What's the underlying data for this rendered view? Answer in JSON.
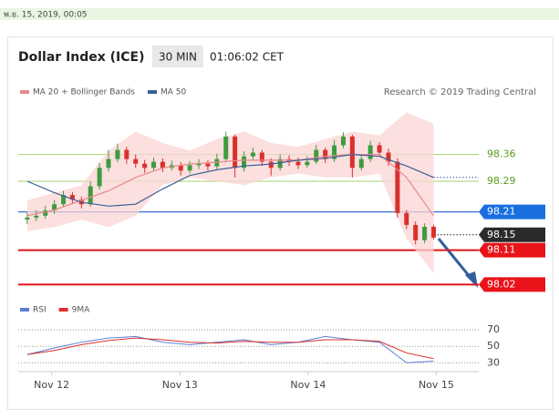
{
  "header": {
    "date": "พ.ย. 15, 2019, 00:05",
    "title": "Dollar Index (ICE)",
    "timeframe": "30 MIN",
    "time": "01:06:02 CET",
    "credit": "Research © 2019 Trading Central"
  },
  "chart_data": [
    {
      "type": "candlestick",
      "up_color": "#3f9b3f",
      "down_color": "#d9302c",
      "xlim": [
        -1,
        50
      ],
      "ylim": [
        97.99,
        98.49
      ],
      "x": [
        0,
        1,
        2,
        3,
        4,
        5,
        6,
        7,
        8,
        9,
        10,
        11,
        12,
        13,
        14,
        15,
        16,
        17,
        18,
        19,
        20,
        21,
        22,
        23,
        24,
        25,
        26,
        27,
        28,
        29,
        30,
        31,
        32,
        33,
        34,
        35,
        36,
        37,
        38,
        39,
        40,
        41,
        42,
        43,
        44,
        45
      ],
      "open": [
        98.19,
        98.195,
        98.2,
        98.214,
        98.23,
        98.254,
        98.242,
        98.23,
        98.277,
        98.325,
        98.348,
        98.372,
        98.348,
        98.336,
        98.325,
        98.341,
        98.325,
        98.332,
        98.318,
        98.332,
        98.336,
        98.329,
        98.348,
        98.407,
        98.325,
        98.355,
        98.365,
        98.341,
        98.325,
        98.348,
        98.341,
        98.332,
        98.341,
        98.372,
        98.348,
        98.384,
        98.407,
        98.325,
        98.348,
        98.384,
        98.365,
        98.341,
        98.207,
        98.176,
        98.136,
        98.171
      ],
      "high": [
        98.207,
        98.214,
        98.226,
        98.241,
        98.265,
        98.262,
        98.25,
        98.29,
        98.338,
        98.372,
        98.388,
        98.38,
        98.36,
        98.346,
        98.352,
        98.35,
        98.344,
        98.34,
        98.343,
        98.348,
        98.345,
        98.362,
        98.42,
        98.412,
        98.368,
        98.378,
        98.372,
        98.35,
        98.36,
        98.358,
        98.352,
        98.355,
        98.385,
        98.378,
        98.398,
        98.418,
        98.412,
        98.36,
        98.396,
        98.392,
        98.375,
        98.35,
        98.215,
        98.185,
        98.18,
        98.176
      ],
      "low": [
        98.178,
        98.186,
        98.192,
        98.205,
        98.222,
        98.231,
        98.219,
        98.224,
        98.268,
        98.315,
        98.34,
        98.336,
        98.325,
        98.312,
        98.316,
        98.314,
        98.318,
        98.305,
        98.31,
        98.322,
        98.318,
        98.322,
        98.34,
        98.3,
        98.315,
        98.345,
        98.33,
        98.305,
        98.318,
        98.33,
        98.322,
        98.325,
        98.335,
        98.338,
        98.34,
        98.376,
        98.3,
        98.318,
        98.34,
        98.355,
        98.33,
        98.195,
        98.165,
        98.125,
        98.128,
        98.138
      ],
      "close": [
        98.195,
        98.2,
        98.214,
        98.23,
        98.254,
        98.242,
        98.23,
        98.277,
        98.325,
        98.348,
        98.372,
        98.348,
        98.336,
        98.325,
        98.341,
        98.325,
        98.332,
        98.318,
        98.332,
        98.336,
        98.329,
        98.348,
        98.407,
        98.325,
        98.355,
        98.365,
        98.341,
        98.325,
        98.348,
        98.341,
        98.332,
        98.341,
        98.372,
        98.348,
        98.384,
        98.407,
        98.325,
        98.348,
        98.384,
        98.365,
        98.341,
        98.207,
        98.176,
        98.136,
        98.171,
        98.143
      ],
      "series": [
        {
          "name": "MA 20 + Bollinger Bands",
          "color": "#e88a8a",
          "band_color": "#fbd4d4",
          "x": [
            0,
            3,
            6,
            9,
            12,
            15,
            18,
            21,
            24,
            27,
            30,
            33,
            36,
            39,
            42,
            45
          ],
          "values": [
            98.2,
            98.215,
            98.24,
            98.265,
            98.3,
            98.325,
            98.335,
            98.34,
            98.345,
            98.345,
            98.345,
            98.355,
            98.36,
            98.36,
            98.3,
            98.2
          ],
          "upper": [
            98.24,
            98.26,
            98.28,
            98.37,
            98.42,
            98.39,
            98.37,
            98.4,
            98.42,
            98.39,
            98.38,
            98.4,
            98.42,
            98.41,
            98.47,
            98.44
          ],
          "lower": [
            98.16,
            98.17,
            98.19,
            98.17,
            98.2,
            98.28,
            98.3,
            98.29,
            98.28,
            98.3,
            98.31,
            98.3,
            98.3,
            98.31,
            98.14,
            98.05
          ]
        },
        {
          "name": "MA 50",
          "color": "#3a5f99",
          "x": [
            0,
            3,
            6,
            9,
            12,
            15,
            18,
            21,
            24,
            27,
            30,
            33,
            36,
            39,
            42,
            45
          ],
          "values": [
            98.29,
            98.26,
            98.235,
            98.225,
            98.23,
            98.27,
            98.305,
            98.32,
            98.33,
            98.335,
            98.345,
            98.35,
            98.36,
            98.355,
            98.33,
            98.3
          ]
        }
      ],
      "levels": [
        {
          "value": 98.36,
          "line_color": "#a6d36d",
          "text_color": "#5c9d1f",
          "tag": null,
          "dash": false
        },
        {
          "value": 98.29,
          "line_color": "#a6d36d",
          "text_color": "#5c9d1f",
          "tag": null,
          "dash": false
        },
        {
          "value": 98.21,
          "line_color": "#3b6fd0",
          "text_color": "#ffffff",
          "tag": "#1a6fe0",
          "dash": false
        },
        {
          "value": 98.15,
          "line_color": "#222222",
          "text_color": "#ffffff",
          "tag": "#2b2b2b",
          "dash": true
        },
        {
          "value": 98.11,
          "line_color": "#e0141a",
          "text_color": "#ffffff",
          "tag": "#e8141a",
          "dash": false
        },
        {
          "value": 98.02,
          "line_color": "#e0141a",
          "text_color": "#ffffff",
          "tag": "#e8141a",
          "dash": false
        }
      ]
    },
    {
      "type": "line",
      "xlim": [
        -1,
        50
      ],
      "ylim": [
        17,
        89
      ],
      "yticks": [
        30,
        50,
        70
      ],
      "xticks": [
        {
          "value": 2.7,
          "label": "Nov 12"
        },
        {
          "value": 16.9,
          "label": "Nov 13"
        },
        {
          "value": 31.1,
          "label": "Nov 14"
        },
        {
          "value": 45.3,
          "label": "Nov 15"
        }
      ],
      "series": [
        {
          "name": "RSI",
          "color": "#5b7fd6",
          "x": [
            0,
            3,
            6,
            9,
            12,
            15,
            18,
            21,
            24,
            27,
            30,
            33,
            36,
            39,
            42,
            45
          ],
          "values": [
            40,
            48,
            55,
            60,
            62,
            55,
            52,
            55,
            58,
            52,
            55,
            62,
            58,
            55,
            30,
            32
          ]
        },
        {
          "name": "9MA",
          "color": "#d9302c",
          "x": [
            0,
            3,
            6,
            9,
            12,
            15,
            18,
            21,
            24,
            27,
            30,
            33,
            36,
            39,
            42,
            45
          ],
          "values": [
            40,
            45,
            52,
            57,
            60,
            58,
            55,
            54,
            56,
            55,
            55,
            58,
            58,
            56,
            42,
            35
          ]
        }
      ]
    }
  ]
}
